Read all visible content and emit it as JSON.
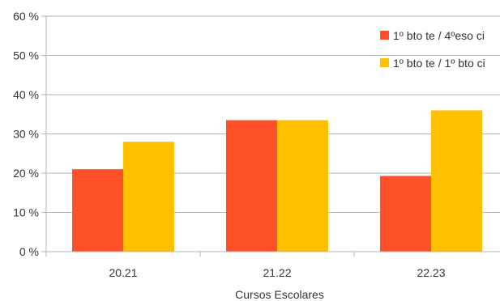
{
  "chart_data": {
    "type": "bar",
    "title": "",
    "xlabel": "Cursos Escolares",
    "ylabel": "",
    "categories": [
      "20.21",
      "21.22",
      "22.23"
    ],
    "series": [
      {
        "name": "1º bto te / 4ºeso ci",
        "values": [
          21,
          33.5,
          19.3
        ],
        "color": "#ff5028"
      },
      {
        "name": "1º bto te / 1º bto ci",
        "values": [
          28,
          33.5,
          36
        ],
        "color": "#ffc000"
      }
    ],
    "ylim": [
      0,
      60
    ],
    "yticks": [
      0,
      10,
      20,
      30,
      40,
      50,
      60
    ],
    "ytick_format": "{v} %",
    "grid": true,
    "legend_position": "top-right"
  }
}
